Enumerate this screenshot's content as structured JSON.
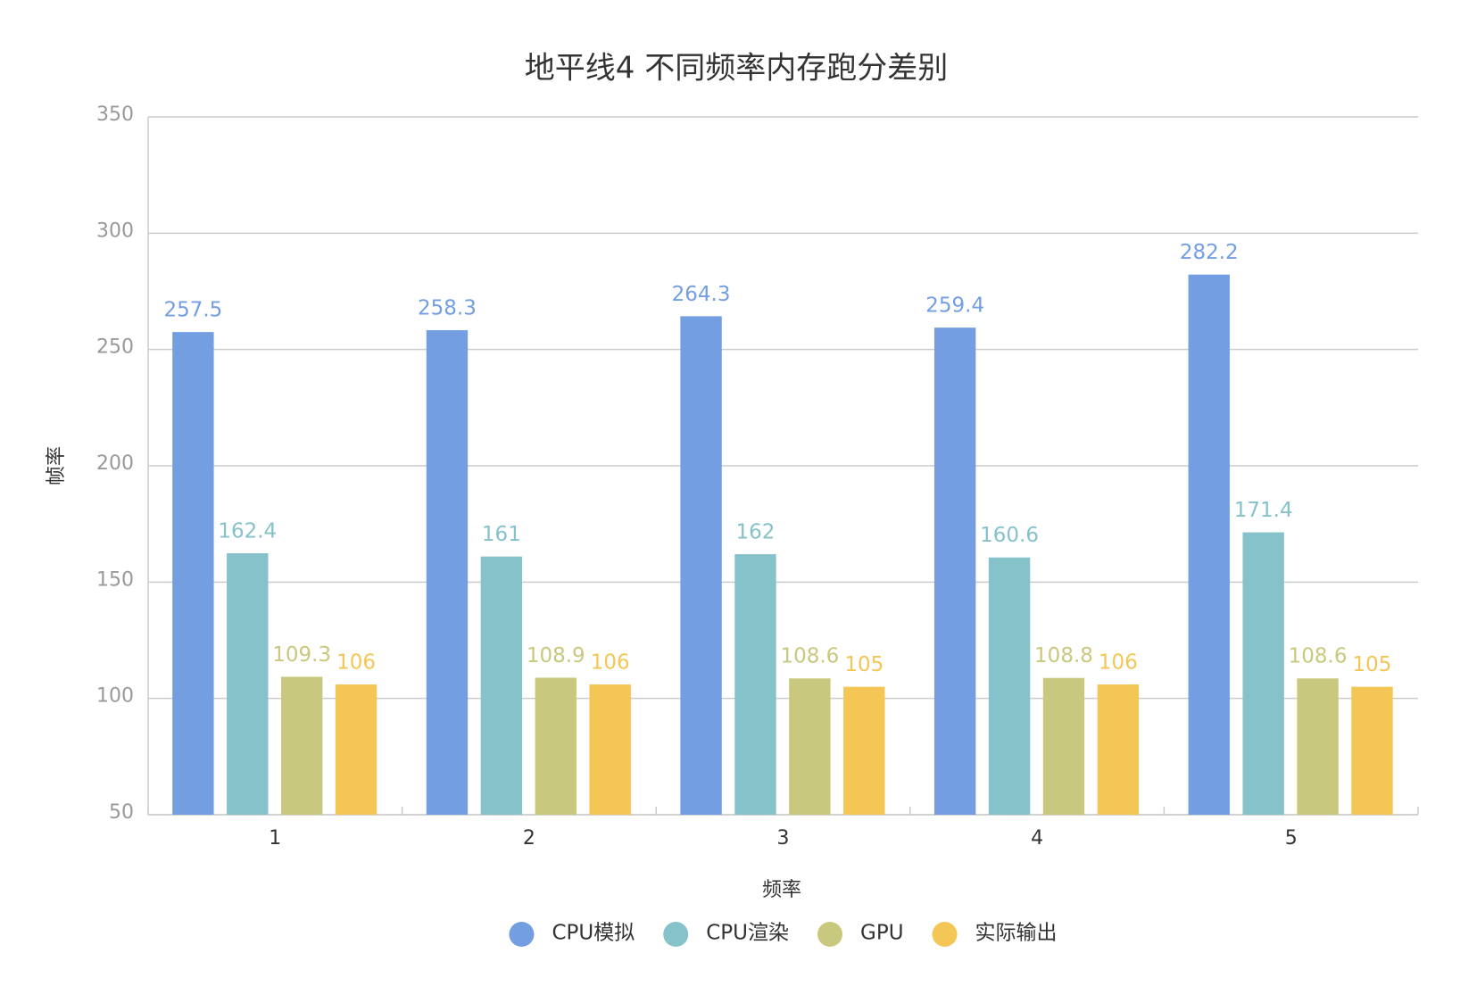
{
  "chart_data": {
    "type": "bar",
    "title": "地平线4 不同频率内存跑分差别",
    "x_label": "频率",
    "y_label": "帧率",
    "categories": [
      "1",
      "2",
      "3",
      "4",
      "5"
    ],
    "series": [
      {
        "name": "CPU模拟",
        "color": "#739fe2",
        "values": [
          257.5,
          258.3,
          264.3,
          259.4,
          282.2
        ]
      },
      {
        "name": "CPU渲染",
        "color": "#86c2c9",
        "values": [
          162.4,
          161,
          162,
          160.6,
          171.4
        ]
      },
      {
        "name": "GPU",
        "color": "#c8c97e",
        "values": [
          109.3,
          108.9,
          108.6,
          108.8,
          108.6
        ]
      },
      {
        "name": "实际输出",
        "color": "#f3c655",
        "values": [
          106,
          106,
          105,
          106,
          105
        ]
      }
    ],
    "ylim": [
      50,
      350
    ],
    "yticks": [
      50,
      100,
      150,
      200,
      250,
      300,
      350
    ],
    "grid": true,
    "legend": "bottom"
  }
}
